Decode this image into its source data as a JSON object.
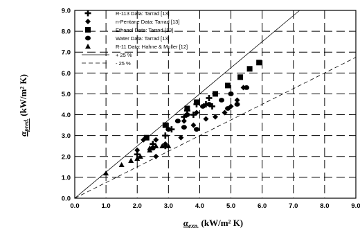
{
  "chart_data": {
    "type": "scatter",
    "xlabel_symbol": "α",
    "xlabel_sub": "exp.",
    "xlabel_unit": "(kW/m² K)",
    "ylabel_symbol": "α",
    "ylabel_sub": "pred.",
    "ylabel_unit": "(kW/m² K)",
    "xlim": [
      0.0,
      9.0
    ],
    "ylim": [
      0.0,
      9.0
    ],
    "xticks": [
      "0.0",
      "1.0",
      "2.0",
      "3.0",
      "4.0",
      "5.0",
      "6.0",
      "7.0",
      "8.0",
      "9.0"
    ],
    "yticks": [
      "0.0",
      "1.0",
      "2.0",
      "3.0",
      "4.0",
      "5.0",
      "6.0",
      "7.0",
      "8.0",
      "9.0"
    ],
    "grid": true,
    "legend_position": "top-left",
    "series": [
      {
        "name": "R-113 Data: Tarrad [13]",
        "marker": "plus",
        "points": [
          [
            2.0,
            2.1
          ],
          [
            2.5,
            2.6
          ],
          [
            2.9,
            2.5
          ],
          [
            2.9,
            3.0
          ],
          [
            3.1,
            3.3
          ],
          [
            3.5,
            3.9
          ],
          [
            3.6,
            4.2
          ],
          [
            3.8,
            4.0
          ],
          [
            3.9,
            4.5
          ],
          [
            4.2,
            4.5
          ],
          [
            4.3,
            4.8
          ],
          [
            4.4,
            4.4
          ]
        ]
      },
      {
        "name": "n-Pentane Data: Tarrad [13]",
        "marker": "diamond",
        "points": [
          [
            2.0,
            2.3
          ],
          [
            2.2,
            2.8
          ],
          [
            2.6,
            2.0
          ],
          [
            2.6,
            2.8
          ],
          [
            2.9,
            2.6
          ],
          [
            3.4,
            2.9
          ],
          [
            3.5,
            3.7
          ],
          [
            3.8,
            3.5
          ],
          [
            3.9,
            4.1
          ],
          [
            4.2,
            3.8
          ],
          [
            4.5,
            3.9
          ],
          [
            4.8,
            4.1
          ],
          [
            5.0,
            4.4
          ],
          [
            5.2,
            4.7
          ],
          [
            5.4,
            5.3
          ]
        ]
      },
      {
        "name": "Ethanol Data: Tarrad [13]",
        "marker": "square",
        "points": [
          [
            2.3,
            2.9
          ],
          [
            2.9,
            3.5
          ],
          [
            3.6,
            4.3
          ],
          [
            3.9,
            4.6
          ],
          [
            4.5,
            5.0
          ],
          [
            4.9,
            5.4
          ],
          [
            5.3,
            5.8
          ],
          [
            5.6,
            6.2
          ],
          [
            5.9,
            6.5
          ]
        ]
      },
      {
        "name": "Water Data: Tarrad [13]",
        "marker": "circle",
        "points": [
          [
            2.5,
            2.4
          ],
          [
            3.0,
            3.3
          ],
          [
            3.3,
            3.7
          ],
          [
            3.5,
            3.4
          ],
          [
            3.6,
            4.0
          ],
          [
            3.9,
            3.3
          ],
          [
            4.1,
            4.4
          ],
          [
            4.3,
            4.5
          ],
          [
            4.7,
            4.7
          ],
          [
            4.9,
            4.3
          ],
          [
            5.0,
            5.0
          ],
          [
            5.2,
            4.5
          ],
          [
            5.5,
            5.3
          ]
        ]
      },
      {
        "name": "R-11 Data: Hahne & Muller [12]",
        "marker": "triangle",
        "points": [
          [
            1.0,
            1.2
          ],
          [
            1.5,
            1.6
          ],
          [
            1.8,
            1.8
          ],
          [
            2.0,
            1.9
          ],
          [
            2.1,
            2.0
          ],
          [
            2.4,
            2.3
          ],
          [
            2.4,
            2.4
          ],
          [
            2.6,
            2.5
          ],
          [
            2.8,
            2.5
          ],
          [
            3.0,
            2.5
          ]
        ]
      }
    ],
    "lines": [
      {
        "name": "+ 25 %",
        "style": "solid",
        "slope": 1.25
      },
      {
        "name": "- 25 %",
        "style": "dashed",
        "slope": 0.75
      }
    ]
  }
}
